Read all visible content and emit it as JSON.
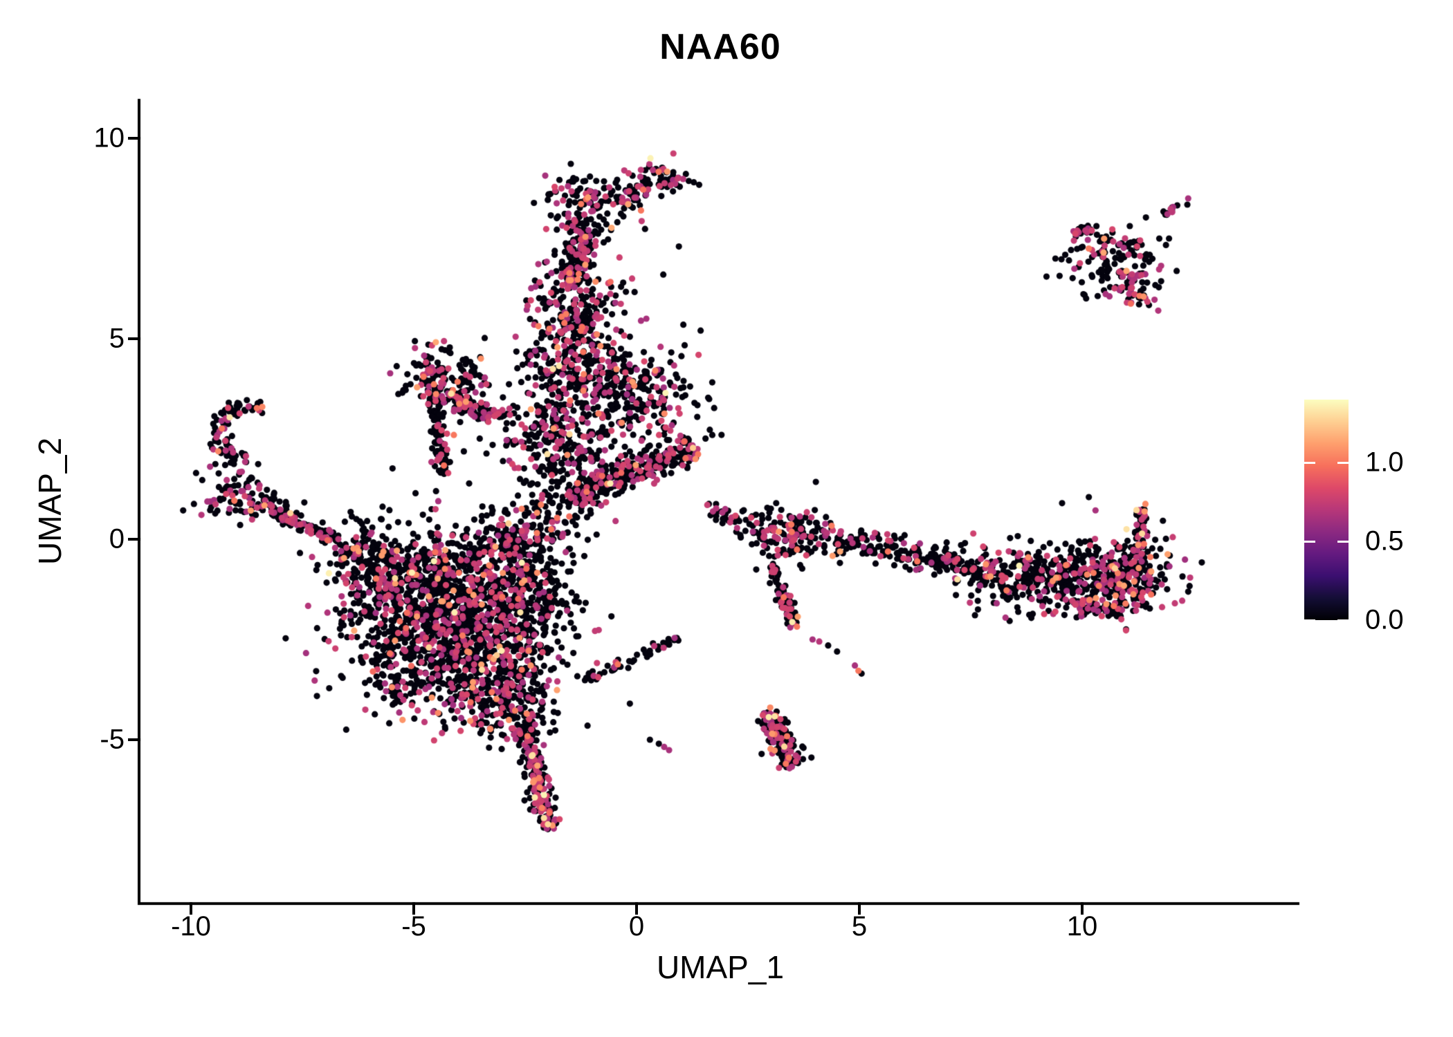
{
  "title": "NAA60",
  "axes": {
    "x": {
      "label": "UMAP_1",
      "ticks": [
        "-10",
        "-5",
        "0",
        "5",
        "10"
      ],
      "tick_values": [
        -10,
        -5,
        0,
        5,
        10
      ]
    },
    "y": {
      "label": "UMAP_2",
      "ticks": [
        "-5",
        "0",
        "5",
        "10"
      ],
      "tick_values": [
        -5,
        0,
        5,
        10
      ]
    }
  },
  "colorbar": {
    "tick_labels": [
      "1.0",
      "0.5",
      "0.0"
    ],
    "tick_values": [
      1.0,
      0.5,
      0.0
    ],
    "vmax": 1.4,
    "colormap": "magma",
    "stops": [
      "#000004",
      "#140e36",
      "#3b0f70",
      "#641a80",
      "#8c2981",
      "#b73779",
      "#de4968",
      "#f7705c",
      "#fe9f6d",
      "#fecf92",
      "#fcfdbf"
    ]
  },
  "chart_data": {
    "type": "scatter",
    "title": "NAA60",
    "xlabel": "UMAP_1",
    "ylabel": "UMAP_2",
    "xlim": [
      -11.1,
      14.9
    ],
    "ylim": [
      -9.0,
      11.0
    ],
    "grid": false,
    "legend_position": "right",
    "point_radius_px": 4.6,
    "seed": 7,
    "value_bins": {
      "mid": [
        0.62,
        0.2
      ],
      "high": [
        0.95,
        0.2
      ],
      "top": [
        1.25,
        0.13
      ]
    },
    "defaults": {
      "mag": 0.2,
      "hi": 0.03,
      "top": 0.004
    },
    "clusters": [
      {
        "name": "main-blob-core",
        "kind": "gauss",
        "cx": -4.55,
        "cy": -1.55,
        "sx": 1.05,
        "sy": 0.95,
        "n": 760,
        "hi": 0.035
      },
      {
        "name": "main-blob-lower",
        "kind": "gauss",
        "cx": -3.55,
        "cy": -2.7,
        "sx": 0.85,
        "sy": 0.85,
        "n": 560
      },
      {
        "name": "main-blob-left",
        "kind": "gauss",
        "cx": -5.35,
        "cy": -0.8,
        "sx": 0.75,
        "sy": 0.5,
        "n": 200,
        "mag": 0.18
      },
      {
        "name": "main-blob-bottom",
        "kind": "gauss",
        "cx": -2.95,
        "cy": -3.9,
        "sx": 0.6,
        "sy": 0.55,
        "n": 220,
        "mag": 0.22
      },
      {
        "name": "main-blob-right",
        "kind": "gauss",
        "cx": -2.55,
        "cy": -1.3,
        "sx": 0.65,
        "sy": 0.75,
        "n": 260
      },
      {
        "name": "main-blob-top-edge",
        "kind": "gauss",
        "cx": -2.6,
        "cy": 0.15,
        "sx": 0.85,
        "sy": 0.42,
        "rot": 25,
        "n": 260
      },
      {
        "name": "blob-tail",
        "kind": "line",
        "x1": -2.55,
        "y1": -4.55,
        "x2": -1.95,
        "y2": -7.25,
        "w": 0.24,
        "n": 230,
        "mag": 0.3,
        "hi": 0.05,
        "top": 0.01
      },
      {
        "name": "blob-fringe-sw",
        "kind": "gauss",
        "cx": -5.3,
        "cy": -3.3,
        "sx": 0.65,
        "sy": 0.6,
        "n": 110
      },
      {
        "name": "blob-fringe-w",
        "kind": "gauss",
        "cx": -6.0,
        "cy": -0.6,
        "sx": 0.45,
        "sy": 0.55,
        "n": 70,
        "mag": 0.15
      },
      {
        "name": "left-arm-hook",
        "kind": "arc",
        "cx": -8.7,
        "cy": 2.6,
        "r": 0.68,
        "a1": 60,
        "a2": 265,
        "jit": 0.12,
        "n": 85,
        "mag": 0.25
      },
      {
        "name": "left-arm-base",
        "kind": "gauss",
        "cx": -8.95,
        "cy": 1.15,
        "sx": 0.42,
        "sy": 0.4,
        "n": 85,
        "mag": 0.25
      },
      {
        "name": "left-arm-streak",
        "kind": "line",
        "x1": -8.45,
        "y1": 0.95,
        "x2": -6.7,
        "y2": -0.05,
        "w": 0.2,
        "n": 120,
        "mag": 0.25
      },
      {
        "name": "left-arm-trail",
        "kind": "line",
        "x1": -6.55,
        "y1": -0.15,
        "x2": -5.9,
        "y2": -0.45,
        "w": 0.3,
        "n": 35,
        "mag": 0.15
      },
      {
        "name": "column-head",
        "kind": "gauss",
        "cx": -1.05,
        "cy": 8.45,
        "sx": 0.5,
        "sy": 0.42,
        "n": 130,
        "mag": 0.22
      },
      {
        "name": "head-east-cluster",
        "kind": "gauss",
        "cx": 0.55,
        "cy": 9.0,
        "sx": 0.33,
        "sy": 0.28,
        "n": 55,
        "mag": 0.45,
        "hi": 0.08
      },
      {
        "name": "head-bridge",
        "kind": "line",
        "x1": -0.35,
        "y1": 8.35,
        "x2": 0.2,
        "y2": 8.85,
        "w": 0.2,
        "n": 25,
        "mag": 0.3
      },
      {
        "name": "column-neck",
        "kind": "line",
        "x1": -1.15,
        "y1": 7.9,
        "x2": -1.45,
        "y2": 6.3,
        "w": 0.34,
        "n": 150,
        "mag": 0.25
      },
      {
        "name": "column-upper",
        "kind": "gauss",
        "cx": -1.4,
        "cy": 5.6,
        "sx": 0.55,
        "sy": 0.7,
        "n": 240,
        "mag": 0.28
      },
      {
        "name": "column-mid",
        "kind": "gauss",
        "cx": -1.55,
        "cy": 4.35,
        "sx": 0.55,
        "sy": 0.55,
        "n": 150,
        "mag": 0.25
      },
      {
        "name": "column-lower",
        "kind": "gauss",
        "cx": -1.8,
        "cy": 2.95,
        "sx": 0.5,
        "sy": 0.55,
        "n": 140,
        "mag": 0.22
      },
      {
        "name": "column-foot",
        "kind": "gauss",
        "cx": -1.6,
        "cy": 1.95,
        "sx": 0.45,
        "sy": 0.5,
        "n": 100,
        "mag": 0.22
      },
      {
        "name": "column-east-sparse",
        "kind": "gauss",
        "cx": -0.55,
        "cy": 2.75,
        "sx": 0.7,
        "sy": 0.8,
        "n": 55
      },
      {
        "name": "east-lobe-upper",
        "kind": "gauss",
        "cx": -0.15,
        "cy": 3.9,
        "sx": 0.8,
        "sy": 0.45,
        "n": 200,
        "mag": 0.25
      },
      {
        "name": "east-lobe-sparse",
        "kind": "gauss",
        "cx": 0.35,
        "cy": 2.95,
        "sx": 0.65,
        "sy": 0.35,
        "n": 55
      },
      {
        "name": "east-ridge",
        "kind": "line",
        "x1": -1.5,
        "y1": 1.05,
        "x2": 1.3,
        "y2": 2.3,
        "w": 0.38,
        "n": 290,
        "mag": 0.22
      },
      {
        "name": "triangle-head",
        "kind": "gauss",
        "cx": -4.35,
        "cy": 3.95,
        "sx": 0.5,
        "sy": 0.4,
        "n": 160,
        "mag": 0.22,
        "hi": 0.04
      },
      {
        "name": "triangle-streak-e1",
        "kind": "line",
        "x1": -4.25,
        "y1": 3.6,
        "x2": -2.95,
        "y2": 3.05,
        "w": 0.16,
        "n": 60,
        "mag": 0.25
      },
      {
        "name": "triangle-streak-e2",
        "kind": "line",
        "x1": -4.05,
        "y1": 3.35,
        "x2": -3.3,
        "y2": 2.9,
        "w": 0.12,
        "n": 35,
        "mag": 0.25
      },
      {
        "name": "triangle-south-trail",
        "kind": "line",
        "x1": -4.55,
        "y1": 3.45,
        "x2": -4.3,
        "y2": 1.6,
        "w": 0.2,
        "n": 80,
        "mag": 0.25
      },
      {
        "name": "triangle-gap-sparse",
        "kind": "gauss",
        "cx": -2.7,
        "cy": 2.5,
        "sx": 0.55,
        "sy": 0.45,
        "n": 40
      },
      {
        "name": "band-approach",
        "kind": "line",
        "x1": 1.55,
        "y1": 0.75,
        "x2": 2.85,
        "y2": 0.35,
        "w": 0.22,
        "n": 40,
        "mag": 0.18
      },
      {
        "name": "band-start",
        "kind": "gauss",
        "cx": 3.5,
        "cy": 0.1,
        "sx": 0.55,
        "sy": 0.33,
        "n": 170,
        "mag": 0.28,
        "hi": 0.05
      },
      {
        "name": "band-mid",
        "kind": "line",
        "x1": 4.5,
        "y1": 0.0,
        "x2": 8.0,
        "y2": -0.85,
        "w": 0.33,
        "n": 210,
        "mag": 0.22,
        "hi": 0.04,
        "top": 0.005
      },
      {
        "name": "band-east-cloud",
        "kind": "gauss",
        "cx": 9.5,
        "cy": -0.95,
        "sx": 1.1,
        "sy": 0.42,
        "n": 440,
        "mag": 0.22,
        "hi": 0.04
      },
      {
        "name": "band-east-end",
        "kind": "gauss",
        "cx": 11.0,
        "cy": -0.85,
        "sx": 0.5,
        "sy": 0.5,
        "n": 170,
        "mag": 0.3,
        "hi": 0.07
      },
      {
        "name": "band-lower-lip",
        "kind": "line",
        "x1": 9.8,
        "y1": -1.7,
        "x2": 10.9,
        "y2": -1.8,
        "w": 0.22,
        "n": 55,
        "mag": 0.25
      },
      {
        "name": "band-hook-up",
        "kind": "line",
        "x1": 11.25,
        "y1": -0.45,
        "x2": 11.35,
        "y2": 0.75,
        "w": 0.16,
        "n": 60,
        "mag": 0.35,
        "hi": 0.08
      },
      {
        "name": "band-south-branch",
        "kind": "line",
        "x1": 2.95,
        "y1": -0.65,
        "x2": 3.55,
        "y2": -2.1,
        "w": 0.17,
        "n": 75,
        "mag": 0.25
      },
      {
        "name": "mid-streak",
        "kind": "line",
        "x1": -1.15,
        "y1": -3.55,
        "x2": 0.95,
        "y2": -2.45,
        "w": 0.14,
        "n": 50,
        "mag": 0.12
      },
      {
        "name": "south-cluster",
        "kind": "line",
        "x1": 2.95,
        "y1": -4.3,
        "x2": 3.5,
        "y2": -5.7,
        "w": 0.3,
        "n": 160,
        "mag": 0.3,
        "hi": 0.05,
        "top": 0.012
      },
      {
        "name": "island-main",
        "kind": "gauss",
        "cx": 10.75,
        "cy": 6.9,
        "sx": 0.55,
        "sy": 0.45,
        "n": 140,
        "mag": 0.25,
        "hi": 0.05
      },
      {
        "name": "island-west-streak",
        "kind": "line",
        "x1": 9.8,
        "y1": 7.6,
        "x2": 10.35,
        "y2": 7.8,
        "w": 0.14,
        "n": 22,
        "mag": 0.3
      },
      {
        "name": "island-ne-tip",
        "kind": "line",
        "x1": 11.85,
        "y1": 8.1,
        "x2": 12.3,
        "y2": 8.45,
        "w": 0.1,
        "n": 12,
        "mag": 0.3
      },
      {
        "name": "island-se-clump",
        "kind": "gauss",
        "cx": 11.3,
        "cy": 6.35,
        "sx": 0.25,
        "sy": 0.3,
        "n": 35,
        "mag": 0.4,
        "hi": 0.06
      }
    ],
    "extra_points": [
      [
        -8.52,
        3.27,
        1.0
      ],
      [
        -8.4,
        3.3,
        1.05
      ],
      [
        -8.62,
        3.22,
        0
      ],
      [
        -4.78,
        4.05,
        1.0
      ],
      [
        -4.5,
        3.62,
        1.05
      ],
      [
        -4.12,
        3.72,
        1.0
      ],
      [
        -4.1,
        2.6,
        1.0
      ],
      [
        -3.3,
        3.1,
        0
      ],
      [
        -4.5,
        1.2,
        0
      ],
      [
        -4.45,
        0.95,
        0.65
      ],
      [
        -4.6,
        0.75,
        0
      ],
      [
        0.1,
        5.45,
        0.65
      ],
      [
        0.22,
        5.5,
        0.65
      ],
      [
        1.05,
        5.35,
        0
      ],
      [
        -0.3,
        6.4,
        0
      ],
      [
        0.6,
        6.6,
        0
      ],
      [
        0.95,
        7.3,
        0
      ],
      [
        0.1,
        8.2,
        1.0
      ],
      [
        1.38,
        2.12,
        1.0
      ],
      [
        1.3,
        3.4,
        0
      ],
      [
        1.7,
        2.6,
        0
      ],
      [
        -0.35,
        4.75,
        0
      ],
      [
        -0.15,
        5.05,
        0
      ],
      [
        11.42,
        0.88,
        1.05
      ],
      [
        10.15,
        1.05,
        0
      ],
      [
        10.3,
        0.72,
        0.65
      ],
      [
        9.55,
        0.9,
        0
      ],
      [
        3.52,
        -2.1,
        0.65
      ],
      [
        3.6,
        -2.18,
        1.0
      ],
      [
        3.45,
        -2.2,
        0.65
      ],
      [
        3.95,
        -2.5,
        0.65
      ],
      [
        4.1,
        -2.55,
        0.7
      ],
      [
        4.3,
        -2.65,
        0
      ],
      [
        4.5,
        -2.8,
        0
      ],
      [
        4.9,
        -3.15,
        0.65
      ],
      [
        4.98,
        -3.28,
        1.0
      ],
      [
        5.05,
        -3.35,
        0
      ],
      [
        -0.5,
        -3.2,
        0.65
      ],
      [
        -0.42,
        -3.12,
        1.0
      ],
      [
        3.0,
        -4.2,
        1.05
      ],
      [
        3.1,
        -4.42,
        1.32
      ],
      [
        3.42,
        -5.45,
        1.0
      ],
      [
        3.35,
        -5.6,
        1.0
      ],
      [
        0.5,
        -5.1,
        0
      ],
      [
        0.62,
        -5.18,
        0.65
      ],
      [
        0.73,
        -5.26,
        0.65
      ],
      [
        0.3,
        -5.0,
        0
      ],
      [
        -1.1,
        -4.65,
        0
      ],
      [
        -0.15,
        -4.1,
        0
      ],
      [
        12.38,
        8.5,
        0.65
      ],
      [
        9.4,
        7.0,
        0
      ],
      [
        11.95,
        7.5,
        0
      ],
      [
        11.1,
        5.9,
        0.65
      ],
      [
        9.2,
        6.55,
        0
      ],
      [
        7.2,
        -1.0,
        1.32
      ],
      [
        6.3,
        -0.55,
        1.0
      ],
      [
        6.0,
        -0.1,
        0.65
      ]
    ]
  }
}
